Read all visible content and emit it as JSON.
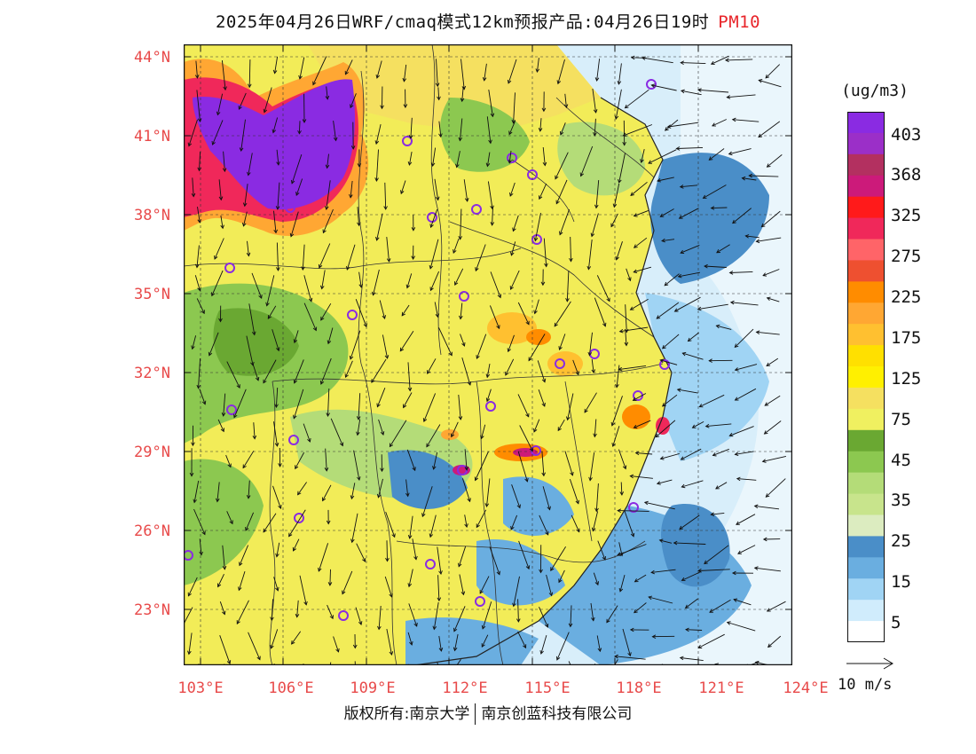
{
  "title": {
    "main": "2025年04月26日WRF/cmaq模式12km预报产品:04月26日19时",
    "variable": "PM10"
  },
  "colorbar": {
    "unit": "(ug/m3)",
    "labels": [
      "403",
      "368",
      "325",
      "275",
      "225",
      "175",
      "125",
      "75",
      "45",
      "35",
      "25",
      "15",
      "5"
    ],
    "colors": [
      "#8a2be2",
      "#9b2fc8",
      "#b33060",
      "#cc1a7a",
      "#ff1a1a",
      "#f0285a",
      "#ff6468",
      "#ee5030",
      "#ff8c00",
      "#ffa733",
      "#ffc030",
      "#ffe000",
      "#fff000",
      "#f5e060",
      "#f0f060",
      "#6aa832",
      "#8cc850",
      "#b4dc78",
      "#c8e48c",
      "#dcecc0",
      "#4a8ec8",
      "#6aaee0",
      "#a0d4f4",
      "#d0ecfc",
      "#ffffff"
    ]
  },
  "axes": {
    "lat_labels": [
      "44°N",
      "41°N",
      "38°N",
      "35°N",
      "32°N",
      "29°N",
      "26°N",
      "23°N"
    ],
    "lon_labels": [
      "103°E",
      "106°E",
      "109°E",
      "112°E",
      "115°E",
      "118°E",
      "121°E",
      "124°E"
    ]
  },
  "wind_reference": "10 m/s",
  "footer": {
    "left": "版权所有:南京大学",
    "right": "南京创蓝科技有限公司"
  }
}
